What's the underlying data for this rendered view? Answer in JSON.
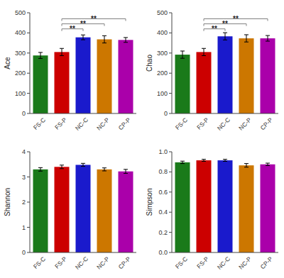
{
  "chart_data": [
    {
      "type": "bar",
      "ylabel": "Ace",
      "categories": [
        "FS-C",
        "FS-P",
        "NC-C",
        "NC-P",
        "CP-P"
      ],
      "colors": [
        "#1a7a1a",
        "#cc0000",
        "#1a1acc",
        "#cc7700",
        "#aa00aa"
      ],
      "values": [
        288,
        305,
        378,
        368,
        365
      ],
      "errors": [
        15,
        18,
        12,
        18,
        12
      ],
      "ylim": [
        0,
        500
      ],
      "yticks": [
        0,
        100,
        200,
        300,
        400,
        500
      ],
      "grid": false,
      "annotations": [
        {
          "text": "**",
          "from": "FS-P",
          "to": "NC-C",
          "y": 420
        },
        {
          "text": "**",
          "from": "FS-P",
          "to": "NC-P",
          "y": 445
        },
        {
          "text": "**",
          "from": "FS-P",
          "to": "CP-P",
          "y": 470
        }
      ]
    },
    {
      "type": "bar",
      "ylabel": "Chao",
      "categories": [
        "FS-C",
        "FS-P",
        "NC-C",
        "NC-P",
        "CP-P"
      ],
      "colors": [
        "#1a7a1a",
        "#cc0000",
        "#1a1acc",
        "#cc7700",
        "#aa00aa"
      ],
      "values": [
        292,
        305,
        383,
        373,
        373
      ],
      "errors": [
        18,
        18,
        18,
        18,
        14
      ],
      "ylim": [
        0,
        500
      ],
      "yticks": [
        0,
        100,
        200,
        300,
        400,
        500
      ],
      "grid": false,
      "annotations": [
        {
          "text": "**",
          "from": "FS-P",
          "to": "NC-C",
          "y": 420
        },
        {
          "text": "**",
          "from": "FS-P",
          "to": "NC-P",
          "y": 445
        },
        {
          "text": "**",
          "from": "FS-P",
          "to": "CP-P",
          "y": 470
        }
      ]
    },
    {
      "type": "bar",
      "ylabel": "Shannon",
      "categories": [
        "FS-C",
        "FS-P",
        "NC-C",
        "NC-P",
        "CP-P"
      ],
      "colors": [
        "#1a7a1a",
        "#cc0000",
        "#1a1acc",
        "#cc7700",
        "#aa00aa"
      ],
      "values": [
        3.3,
        3.4,
        3.48,
        3.3,
        3.22
      ],
      "errors": [
        0.07,
        0.07,
        0.06,
        0.06,
        0.08
      ],
      "ylim": [
        0,
        4
      ],
      "yticks": [
        0,
        1,
        2,
        3,
        4
      ],
      "grid": false
    },
    {
      "type": "bar",
      "ylabel": "Simpson",
      "categories": [
        "FS-C",
        "FS-P",
        "NC-C",
        "NC-P",
        "CP-P"
      ],
      "colors": [
        "#1a7a1a",
        "#cc0000",
        "#1a1acc",
        "#cc7700",
        "#aa00aa"
      ],
      "values": [
        0.895,
        0.915,
        0.915,
        0.865,
        0.875
      ],
      "errors": [
        0.012,
        0.01,
        0.01,
        0.018,
        0.012
      ],
      "ylim": [
        0.0,
        1.0
      ],
      "yticks": [
        {
          "value": 0.0,
          "label": "0.0"
        },
        0.2,
        0.4,
        0.6,
        0.8,
        {
          "value": 1.0,
          "label": "1.0"
        }
      ],
      "grid": false
    }
  ]
}
